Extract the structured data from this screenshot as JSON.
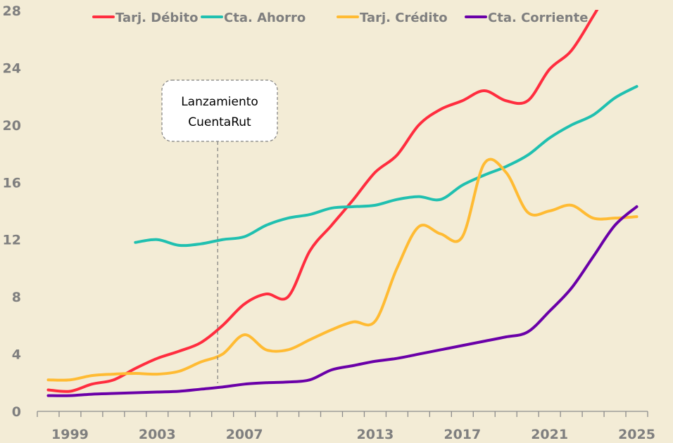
{
  "chart_data": {
    "type": "line",
    "title": "",
    "xlabel": "",
    "ylabel": "",
    "ylim": [
      0,
      28
    ],
    "yticks": [
      0,
      4,
      8,
      12,
      16,
      20,
      24,
      28
    ],
    "grid": false,
    "legend_placement": "top",
    "categories": [
      1998,
      1999,
      2000,
      2001,
      2002,
      2003,
      2004,
      2005,
      2006,
      2007,
      2008,
      2009,
      2010,
      2011,
      2012,
      2013,
      2014,
      2015,
      2016,
      2017,
      2018,
      2019,
      2020,
      2021,
      2022,
      2023,
      2024,
      2025
    ],
    "xtick_labels": [
      "1999",
      "2003",
      "2007",
      "2013",
      "2017",
      "2021",
      "2025"
    ],
    "series": [
      {
        "name": "Tarj. Débito",
        "color": "#ff2d3f",
        "values": [
          1.5,
          1.4,
          1.9,
          2.2,
          3.0,
          3.7,
          4.2,
          4.8,
          6.0,
          7.5,
          8.2,
          8.0,
          11.2,
          13.0,
          14.8,
          16.7,
          17.9,
          20.0,
          21.1,
          21.7,
          22.4,
          21.7,
          21.7,
          23.9,
          25.2,
          27.6,
          30.2,
          null
        ]
      },
      {
        "name": "Cta. Ahorro",
        "color": "#20c0b0",
        "values": [
          null,
          null,
          null,
          null,
          11.8,
          12.0,
          11.6,
          11.7,
          12.0,
          12.2,
          13.0,
          13.5,
          13.75,
          14.2,
          14.3,
          14.4,
          14.8,
          15.0,
          14.8,
          15.8,
          16.5,
          17.1,
          17.9,
          19.1,
          20.0,
          20.7,
          21.9,
          22.7
        ]
      },
      {
        "name": "Tarj. Crédito",
        "color": "#ffbb33",
        "values": [
          2.2,
          2.2,
          2.5,
          2.6,
          2.65,
          2.6,
          2.8,
          3.45,
          4.0,
          5.35,
          4.3,
          4.3,
          5.0,
          5.7,
          6.25,
          6.3,
          10.0,
          12.9,
          12.4,
          12.2,
          17.3,
          16.7,
          13.9,
          14.0,
          14.4,
          13.5,
          13.5,
          13.6
        ]
      },
      {
        "name": "Cta. Corriente",
        "color": "#6a00a8",
        "values": [
          1.1,
          1.1,
          1.2,
          1.25,
          1.3,
          1.35,
          1.4,
          1.55,
          1.7,
          1.9,
          2.0,
          2.05,
          2.2,
          2.9,
          3.2,
          3.5,
          3.7,
          4.0,
          4.3,
          4.6,
          4.9,
          5.2,
          5.55,
          7.0,
          8.6,
          10.8,
          13.0,
          14.3
        ]
      }
    ],
    "annotations": [
      {
        "lines": [
          "Lanzamiento",
          "CuentaRut"
        ],
        "year": 2006
      }
    ]
  }
}
